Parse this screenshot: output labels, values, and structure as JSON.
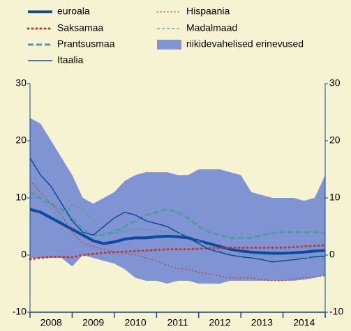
{
  "chart_data": {
    "type": "line",
    "x": [
      2008.0,
      2008.25,
      2008.5,
      2008.75,
      2009.0,
      2009.25,
      2009.5,
      2009.75,
      2010.0,
      2010.25,
      2010.5,
      2010.75,
      2011.0,
      2011.25,
      2011.5,
      2011.75,
      2012.0,
      2012.25,
      2012.5,
      2012.75,
      2013.0,
      2013.25,
      2013.5,
      2013.75,
      2014.0,
      2014.25,
      2014.5,
      2014.75,
      2015.0
    ],
    "categories": [
      "2008",
      "2009",
      "2010",
      "2011",
      "2012",
      "2013",
      "2014"
    ],
    "xlim": [
      2008,
      2015
    ],
    "xticks": [
      2008,
      2009,
      2010,
      2011,
      2012,
      2013,
      2014,
      2015
    ],
    "ylim": [
      -10,
      30
    ],
    "yticks": [
      30,
      20,
      10,
      0,
      -10
    ],
    "band": {
      "name": "riikidevahelised erinevused",
      "color": "#8093d3",
      "upper": [
        24,
        23,
        20,
        17,
        14,
        10,
        9,
        10,
        11,
        13,
        14,
        14.5,
        14.5,
        14.5,
        14,
        14,
        15,
        15,
        15,
        14.5,
        14,
        11,
        10.5,
        10,
        10,
        10,
        9.5,
        10,
        14
      ],
      "lower": [
        -0.5,
        -0.5,
        -0.5,
        -0.5,
        -2,
        0,
        -0.5,
        -1,
        -1.5,
        -2.5,
        -4,
        -4.5,
        -4.5,
        -5,
        -4.5,
        -4.5,
        -5,
        -5,
        -5,
        -4.5,
        -4.5,
        -4.5,
        -4.5,
        -4.5,
        -4.5,
        -4.5,
        -4.3,
        -4,
        -3.5
      ]
    },
    "series": [
      {
        "name": "euroala",
        "color": "#0b4a9c",
        "width": 4,
        "style": "solid",
        "values": [
          8,
          7.5,
          6.5,
          5.5,
          4.5,
          3.5,
          2.5,
          2,
          2.3,
          2.8,
          3,
          3,
          3.2,
          3.3,
          3.2,
          3,
          2.5,
          2,
          1.5,
          1,
          0.7,
          0.5,
          0.4,
          0.3,
          0.3,
          0.4,
          0.5,
          0.7,
          0.8
        ]
      },
      {
        "name": "Saksamaa",
        "color": "#c0392b",
        "width": 3,
        "style": "dotted",
        "values": [
          -0.7,
          -0.5,
          -0.3,
          -0.3,
          -0.4,
          0,
          0.2,
          0.4,
          0.5,
          0.6,
          0.7,
          0.8,
          0.9,
          1,
          1,
          1,
          1.1,
          1.2,
          1.2,
          1.3,
          1.3,
          1.3,
          1.3,
          1.3,
          1.3,
          1.4,
          1.5,
          1.6,
          1.7
        ]
      },
      {
        "name": "Prantsusmaa",
        "color": "#4a9e9c",
        "width": 3,
        "style": "dashed",
        "values": [
          11,
          10,
          9,
          8,
          6.5,
          4.5,
          3.5,
          3.5,
          4,
          5,
          6,
          7,
          7.5,
          8,
          7.5,
          6.5,
          5,
          4,
          3.5,
          3,
          3,
          3,
          3.5,
          3.8,
          4,
          4,
          4,
          4,
          3.8
        ]
      },
      {
        "name": "Itaalia",
        "color": "#0b4a9c",
        "width": 1.5,
        "style": "solid",
        "values": [
          17,
          14,
          12,
          9,
          6,
          4,
          3.5,
          5,
          6.5,
          7.5,
          7,
          6,
          5.5,
          5,
          4,
          3,
          2,
          1,
          0.5,
          0,
          -0.3,
          -0.5,
          -0.8,
          -1.2,
          -1,
          -0.8,
          -0.6,
          -0.3,
          -0.2
        ]
      },
      {
        "name": "Hispaania",
        "color": "#c0392b",
        "width": 1.3,
        "style": "dotted",
        "values": [
          13,
          11,
          9,
          7,
          4,
          2,
          1.5,
          1,
          0.6,
          0.3,
          0,
          -0.5,
          -1,
          -1.8,
          -2.3,
          -2.5,
          -3,
          -3.3,
          -3.7,
          -4,
          -4,
          -4,
          -4.3,
          -4.5,
          -4.5,
          -4.2,
          -4,
          -3.8,
          -3.6
        ]
      },
      {
        "name": "Madalmaad",
        "color": "#4a9e9c",
        "width": 1.3,
        "style": "dashed",
        "values": [
          10,
          10,
          8,
          6,
          9,
          8,
          6,
          4,
          3.8,
          4.2,
          4.5,
          4.5,
          4.3,
          4,
          3.8,
          3.5,
          2.5,
          1.5,
          0.8,
          0.3,
          0.1,
          0,
          0,
          -0.2,
          -0.3,
          -0.3,
          -0.4,
          -0.5,
          -0.6
        ]
      }
    ]
  }
}
